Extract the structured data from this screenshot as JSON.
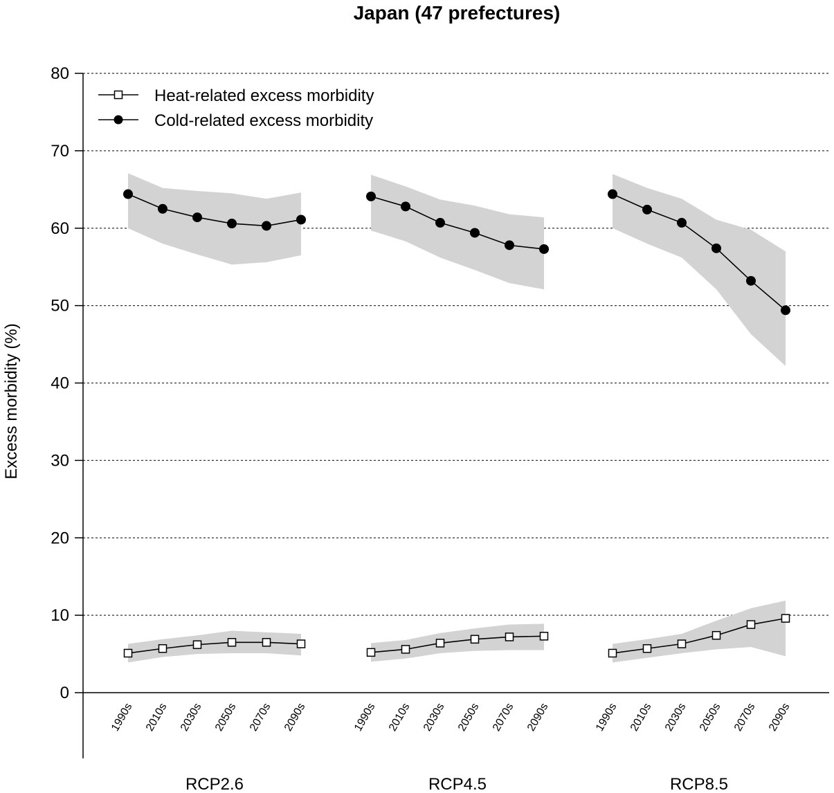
{
  "chart_data": {
    "type": "line",
    "title": "Japan (47 prefectures)",
    "xlabel": "",
    "ylabel": "Excess morbidity (%)",
    "ylim": [
      0,
      80
    ],
    "yticks": [
      0,
      10,
      20,
      30,
      40,
      50,
      60,
      70,
      80
    ],
    "grid": "horizontal dotted lines at each y tick",
    "legend_position": "top-left",
    "x_categories": [
      "1990s",
      "2010s",
      "2030s",
      "2050s",
      "2070s",
      "2090s"
    ],
    "groups": [
      {
        "label": "RCP2.6",
        "series": [
          {
            "name": "Heat-related excess morbidity",
            "marker": "open-square",
            "values": [
              5.1,
              5.7,
              6.2,
              6.5,
              6.5,
              6.3
            ],
            "lower": [
              3.9,
              4.6,
              5.0,
              5.1,
              5.1,
              4.8
            ],
            "upper": [
              6.3,
              6.9,
              7.4,
              8.0,
              7.8,
              7.6
            ]
          },
          {
            "name": "Cold-related excess morbidity",
            "marker": "filled-circle",
            "values": [
              64.4,
              62.5,
              61.4,
              60.6,
              60.3,
              61.1
            ],
            "lower": [
              60.0,
              58.0,
              56.6,
              55.3,
              55.6,
              56.5
            ],
            "upper": [
              67.1,
              65.2,
              64.8,
              64.5,
              63.8,
              64.6
            ]
          }
        ]
      },
      {
        "label": "RCP4.5",
        "series": [
          {
            "name": "Heat-related excess morbidity",
            "marker": "open-square",
            "values": [
              5.2,
              5.6,
              6.4,
              6.9,
              7.2,
              7.3
            ],
            "lower": [
              4.0,
              4.4,
              5.1,
              5.4,
              5.5,
              5.5
            ],
            "upper": [
              6.4,
              6.8,
              7.7,
              8.3,
              8.8,
              8.9
            ]
          },
          {
            "name": "Cold-related excess morbidity",
            "marker": "filled-circle",
            "values": [
              64.1,
              62.8,
              60.7,
              59.4,
              57.8,
              57.3
            ],
            "lower": [
              59.7,
              58.3,
              56.2,
              54.6,
              52.9,
              52.1
            ],
            "upper": [
              66.9,
              65.4,
              63.7,
              62.9,
              61.8,
              61.4
            ]
          }
        ]
      },
      {
        "label": "RCP8.5",
        "series": [
          {
            "name": "Heat-related excess morbidity",
            "marker": "open-square",
            "values": [
              5.1,
              5.7,
              6.3,
              7.4,
              8.8,
              9.6
            ],
            "lower": [
              3.9,
              4.5,
              5.1,
              5.6,
              5.9,
              4.7
            ],
            "upper": [
              6.3,
              6.9,
              7.6,
              9.3,
              10.9,
              11.9
            ]
          },
          {
            "name": "Cold-related excess morbidity",
            "marker": "filled-circle",
            "values": [
              64.4,
              62.4,
              60.7,
              57.4,
              53.2,
              49.4
            ],
            "lower": [
              60.0,
              58.0,
              56.2,
              52.1,
              46.3,
              42.2
            ],
            "upper": [
              67.0,
              65.2,
              63.8,
              61.1,
              59.8,
              57.0
            ]
          }
        ]
      }
    ],
    "legend": [
      {
        "label": "Heat-related excess morbidity",
        "marker": "open-square"
      },
      {
        "label": "Cold-related excess morbidity",
        "marker": "filled-circle"
      }
    ],
    "colors": {
      "band": "#d3d3d3",
      "line": "#000000",
      "grid": "#333333",
      "marker_fill_open": "#ffffff",
      "marker_fill_closed": "#000000"
    }
  }
}
